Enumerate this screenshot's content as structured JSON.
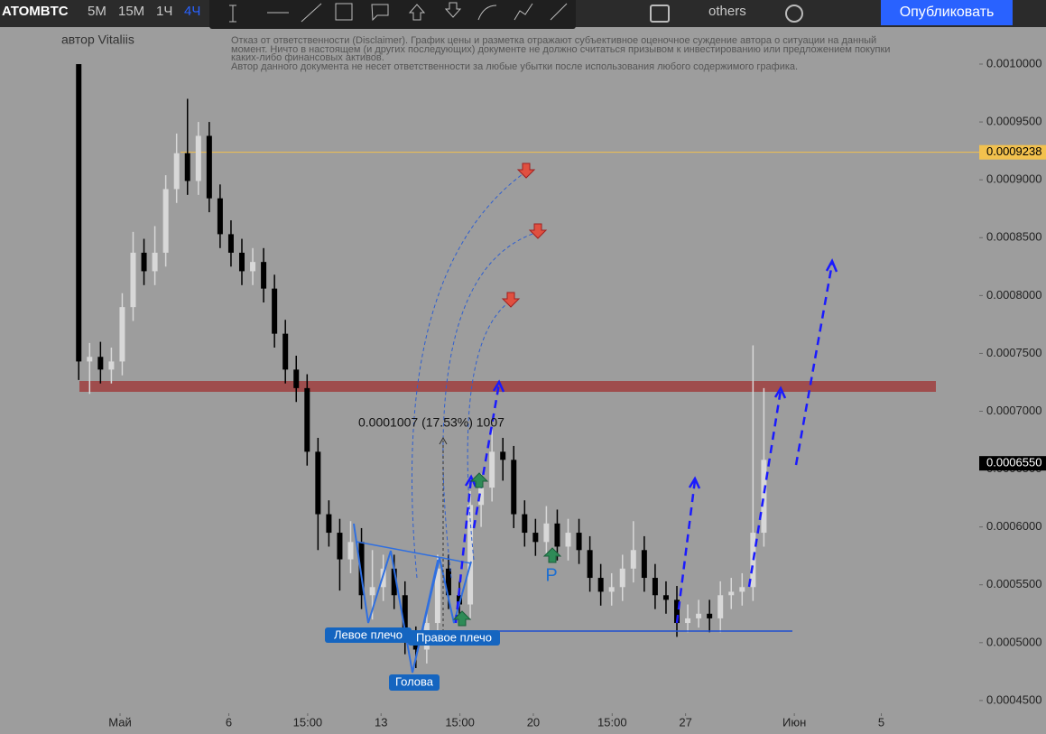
{
  "toolbar": {
    "intervals": [
      "5М",
      "15М",
      "1Ч",
      "4Ч"
    ],
    "active_interval": 3,
    "others": "others",
    "publish": "Опубликовать"
  },
  "chart_data": {
    "type": "candlestick",
    "title": "ATOMBTC",
    "author": "автор Vitaliis",
    "disclaimer": [
      "Отказ от ответственности (Disclaimer). График цены и разметка отражают субъективное оценочное суждение автора о ситуации на данный",
      "момент. Ничто в настоящем (и других последующих) документе не должно считаться призывом к инвестированию или предложением покупки",
      "каких-либо финансовых активов.",
      "Автор данного документа не несет ответственности за любые убытки после использования любого содержимого графика."
    ],
    "annotations": {
      "left_shoulder": "Левое плечо",
      "head": "Голова",
      "right_shoulder": "Правое плечо",
      "p": "P",
      "measure": "0.0001007 (17.53%) 1007"
    },
    "up_color": "#d8d8d8",
    "down_color": "#000000",
    "x": [
      -0.9,
      -0.4,
      0.1,
      0.6,
      1.1,
      1.6,
      2.1,
      2.6,
      3.1,
      3.6,
      4.1,
      4.6,
      5.1,
      5.6,
      6.1,
      6.6,
      7.1,
      7.6,
      8.1,
      8.6,
      9.1,
      9.6,
      10.1,
      10.6,
      11.1,
      11.6,
      12.1,
      12.6,
      13.1,
      13.6,
      14.1,
      14.6,
      15.1,
      15.6,
      16.1,
      16.6,
      17.1,
      17.6,
      18.1,
      18.6,
      19.1,
      19.6,
      20.1,
      20.6,
      21.1,
      21.6,
      22.1,
      22.6,
      23.1,
      23.6,
      24.1,
      24.6,
      25.1,
      25.6,
      26.1,
      26.6,
      27.1,
      27.6,
      28.1,
      28.6,
      29.1,
      29.6,
      30.1,
      30.6
    ],
    "open": [
      0.001,
      0.000743,
      0.000747,
      0.000736,
      0.000743,
      0.00079,
      0.000837,
      0.000821,
      0.000837,
      0.000892,
      0.000923,
      0.000899,
      0.000938,
      0.000884,
      0.000853,
      0.000837,
      0.000821,
      0.000829,
      0.000806,
      0.000767,
      0.000736,
      0.00072,
      0.000665,
      0.000611,
      0.000595,
      0.000572,
      0.000587,
      0.000541,
      0.000548,
      0.000564,
      0.000541,
      0.000502,
      0.000494,
      0.000517,
      0.000564,
      0.000541,
      0.000533,
      0.000619,
      0.000634,
      0.000665,
      0.000658,
      0.000611,
      0.000595,
      0.000587,
      0.000603,
      0.000583,
      0.000595,
      0.00058,
      0.000556,
      0.000544,
      0.000548,
      0.000564,
      0.00058,
      0.000556,
      0.000541,
      0.000537,
      0.000517,
      0.000521,
      0.000525,
      0.000521,
      0.000541,
      0.000544,
      0.000548,
      0.000595
    ],
    "high": [
      0.001,
      0.000759,
      0.00076,
      0.000755,
      0.000802,
      0.000855,
      0.000849,
      0.00086,
      0.000904,
      0.00094,
      0.00097,
      0.00095,
      0.00095,
      0.000896,
      0.000865,
      0.000849,
      0.000841,
      0.000841,
      0.000818,
      0.000779,
      0.000748,
      0.000732,
      0.000677,
      0.000623,
      0.000607,
      0.000605,
      0.000599,
      0.00058,
      0.000576,
      0.000576,
      0.000553,
      0.000514,
      0.000529,
      0.000576,
      0.000576,
      0.000553,
      0.000631,
      0.000646,
      0.000685,
      0.000677,
      0.00067,
      0.000623,
      0.000607,
      0.000618,
      0.000615,
      0.000607,
      0.000607,
      0.000592,
      0.000568,
      0.00056,
      0.000576,
      0.000605,
      0.000592,
      0.000568,
      0.000553,
      0.000549,
      0.000533,
      0.000537,
      0.000537,
      0.000553,
      0.000556,
      0.00056,
      0.000757,
      0.00072
    ],
    "low": [
      0.000727,
      0.000715,
      0.000724,
      0.000724,
      0.000731,
      0.000778,
      0.000809,
      0.000809,
      0.000825,
      0.00088,
      0.000887,
      0.000887,
      0.000872,
      0.000841,
      0.000825,
      0.000809,
      0.000809,
      0.000794,
      0.000755,
      0.000724,
      0.000708,
      0.000653,
      0.00058,
      0.000583,
      0.000545,
      0.00056,
      0.000529,
      0.00052,
      0.000536,
      0.000529,
      0.00049,
      0.000478,
      0.000482,
      0.000505,
      0.000529,
      0.000515,
      0.000521,
      0.0006,
      0.000622,
      0.00064,
      0.000599,
      0.000583,
      0.000575,
      0.000575,
      0.000571,
      0.000571,
      0.000568,
      0.000544,
      0.000532,
      0.000532,
      0.000536,
      0.000552,
      0.000544,
      0.000529,
      0.000525,
      0.000505,
      0.000509,
      0.000513,
      0.000509,
      0.000509,
      0.000529,
      0.000532,
      0.000536,
      0.000583
    ],
    "close": [
      0.000743,
      0.000747,
      0.000736,
      0.000743,
      0.00079,
      0.000837,
      0.000821,
      0.000837,
      0.000892,
      0.000923,
      0.000899,
      0.000938,
      0.000884,
      0.000853,
      0.000837,
      0.000821,
      0.000829,
      0.000806,
      0.000767,
      0.000736,
      0.00072,
      0.000665,
      0.000611,
      0.000595,
      0.000572,
      0.000587,
      0.000541,
      0.000548,
      0.000564,
      0.000541,
      0.000502,
      0.000494,
      0.000517,
      0.000564,
      0.000541,
      0.000533,
      0.000619,
      0.000634,
      0.000665,
      0.000658,
      0.000611,
      0.000595,
      0.000587,
      0.000603,
      0.000583,
      0.000595,
      0.00058,
      0.000556,
      0.000544,
      0.000548,
      0.000564,
      0.00058,
      0.000556,
      0.000541,
      0.000537,
      0.000517,
      0.000521,
      0.000525,
      0.000521,
      0.000541,
      0.000544,
      0.000548,
      0.000595,
      0.000658
    ],
    "xlim": [
      -4.52,
      40.5
    ],
    "xticks": [
      {
        "value": 1,
        "label": "Май"
      },
      6,
      {
        "value": 9.625,
        "label": "15:00"
      },
      13,
      {
        "value": 16.625,
        "label": "15:00"
      },
      20,
      {
        "value": 23.625,
        "label": "15:00"
      },
      27,
      {
        "value": 32,
        "label": "Июн"
      },
      {
        "value": 36,
        "label": "5"
      }
    ],
    "ylim": [
      0.000439,
      0.001032
    ],
    "yticks": [
      {
        "value": 0.00045,
        "label": "0.0004500"
      },
      {
        "value": 0.0005,
        "label": "0.0005000"
      },
      {
        "value": 0.00055,
        "label": "0.0005500"
      },
      {
        "value": 0.0006,
        "label": "0.0006000"
      },
      {
        "value": 0.00065,
        "label": "0.0006500"
      },
      {
        "value": 0.0007,
        "label": "0.0007000"
      },
      {
        "value": 0.00075,
        "label": "0.0007500"
      },
      {
        "value": 0.0008,
        "label": "0.0008000"
      },
      {
        "value": 0.00085,
        "label": "0.0008500"
      },
      {
        "value": 0.0009,
        "label": "0.0009000"
      },
      {
        "value": 0.00095,
        "label": "0.0009500"
      },
      {
        "value": 0.001,
        "label": "0.0010000"
      }
    ],
    "price_lines": [
      {
        "value": 0.0009238,
        "label": "0.0009238",
        "color": "#f2c14e",
        "text_color": "#000000",
        "show_line": true
      },
      {
        "value": 0.000655,
        "label": "0.0006550",
        "color": "#000000",
        "text_color": "#ffffff",
        "show_line": false
      }
    ]
  }
}
